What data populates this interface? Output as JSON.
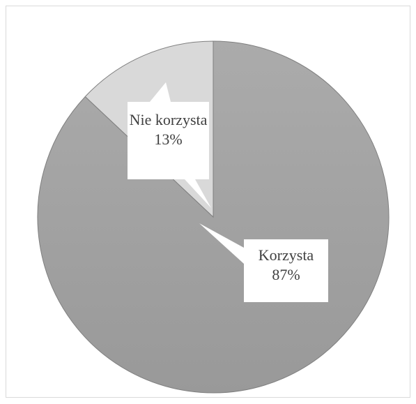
{
  "chart_data": {
    "type": "pie",
    "categories": [
      "Korzysta",
      "Nie korzysta"
    ],
    "values": [
      87,
      13
    ],
    "value_labels": [
      "87%",
      "13%"
    ],
    "colors": [
      "#a5a5a5",
      "#d9d9d9"
    ]
  }
}
